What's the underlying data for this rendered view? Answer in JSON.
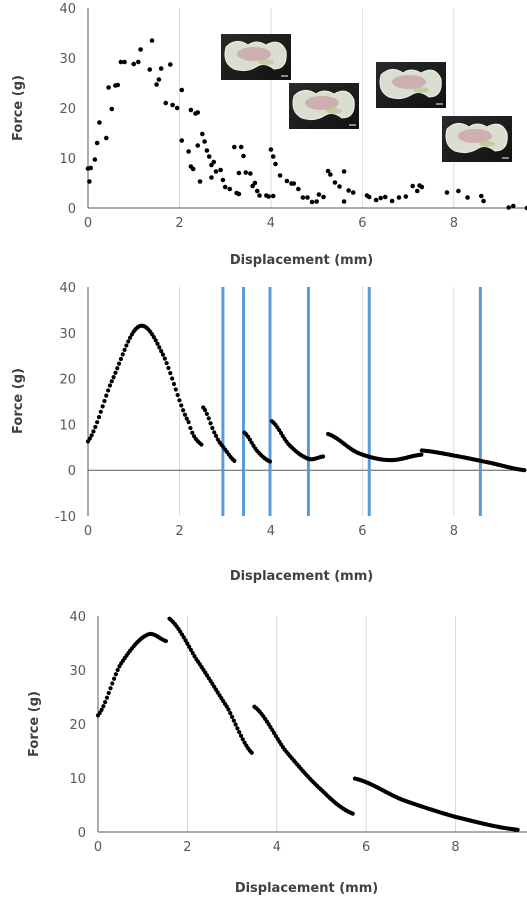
{
  "chart_data": [
    {
      "type": "scatter",
      "title": "",
      "xlabel": "Displacement (mm)",
      "ylabel": "Force (g)",
      "xlim": [
        0,
        9.6
      ],
      "ylim": [
        0,
        40
      ],
      "xticks": [
        0,
        2,
        4,
        6,
        8
      ],
      "yticks": [
        0,
        10,
        20,
        30,
        40
      ],
      "grid": "vertical",
      "marker_color": "#000000",
      "inset_photos": 4,
      "points": [
        [
          0.0,
          7.9
        ],
        [
          0.03,
          5.3
        ],
        [
          0.06,
          8.0
        ],
        [
          0.15,
          9.7
        ],
        [
          0.2,
          13.0
        ],
        [
          0.25,
          17.1
        ],
        [
          0.4,
          14.0
        ],
        [
          0.45,
          24.1
        ],
        [
          0.52,
          19.8
        ],
        [
          0.6,
          24.5
        ],
        [
          0.65,
          24.6
        ],
        [
          0.72,
          29.2
        ],
        [
          0.8,
          29.2
        ],
        [
          1.0,
          28.8
        ],
        [
          1.1,
          29.2
        ],
        [
          1.15,
          31.7
        ],
        [
          1.35,
          27.7
        ],
        [
          1.4,
          33.5
        ],
        [
          1.5,
          24.7
        ],
        [
          1.55,
          25.7
        ],
        [
          1.6,
          27.9
        ],
        [
          1.7,
          21.0
        ],
        [
          1.8,
          28.7
        ],
        [
          1.85,
          20.6
        ],
        [
          1.95,
          20.0
        ],
        [
          2.05,
          23.6
        ],
        [
          2.05,
          13.5
        ],
        [
          2.2,
          11.3
        ],
        [
          2.25,
          19.6
        ],
        [
          2.25,
          8.3
        ],
        [
          2.3,
          7.8
        ],
        [
          2.35,
          18.9
        ],
        [
          2.4,
          19.1
        ],
        [
          2.4,
          12.5
        ],
        [
          2.45,
          5.3
        ],
        [
          2.5,
          14.8
        ],
        [
          2.55,
          13.3
        ],
        [
          2.6,
          11.5
        ],
        [
          2.65,
          10.3
        ],
        [
          2.7,
          8.6
        ],
        [
          2.7,
          6.1
        ],
        [
          2.75,
          9.2
        ],
        [
          2.8,
          7.3
        ],
        [
          2.9,
          7.6
        ],
        [
          2.95,
          5.6
        ],
        [
          3.0,
          4.2
        ],
        [
          3.1,
          3.8
        ],
        [
          3.2,
          12.2
        ],
        [
          3.25,
          3.0
        ],
        [
          3.3,
          7.0
        ],
        [
          3.3,
          2.8
        ],
        [
          3.35,
          12.2
        ],
        [
          3.4,
          10.4
        ],
        [
          3.45,
          7.1
        ],
        [
          3.55,
          6.9
        ],
        [
          3.6,
          4.4
        ],
        [
          3.65,
          5.0
        ],
        [
          3.7,
          3.4
        ],
        [
          3.75,
          2.5
        ],
        [
          3.9,
          2.5
        ],
        [
          3.95,
          2.3
        ],
        [
          4.0,
          11.7
        ],
        [
          4.05,
          10.3
        ],
        [
          4.05,
          2.4
        ],
        [
          4.1,
          8.8
        ],
        [
          4.2,
          6.5
        ],
        [
          4.35,
          5.4
        ],
        [
          4.45,
          4.9
        ],
        [
          4.5,
          4.9
        ],
        [
          4.6,
          3.8
        ],
        [
          4.7,
          2.1
        ],
        [
          4.8,
          2.1
        ],
        [
          4.9,
          1.2
        ],
        [
          5.0,
          1.3
        ],
        [
          5.05,
          2.7
        ],
        [
          5.15,
          2.2
        ],
        [
          5.25,
          7.4
        ],
        [
          5.3,
          6.7
        ],
        [
          5.4,
          5.1
        ],
        [
          5.5,
          4.3
        ],
        [
          5.6,
          7.3
        ],
        [
          5.6,
          1.3
        ],
        [
          5.7,
          3.5
        ],
        [
          5.8,
          3.1
        ],
        [
          6.1,
          2.5
        ],
        [
          6.15,
          2.2
        ],
        [
          6.3,
          1.6
        ],
        [
          6.4,
          2.0
        ],
        [
          6.5,
          2.2
        ],
        [
          6.65,
          1.4
        ],
        [
          6.8,
          2.1
        ],
        [
          6.95,
          2.3
        ],
        [
          7.1,
          4.4
        ],
        [
          7.2,
          3.4
        ],
        [
          7.25,
          4.5
        ],
        [
          7.3,
          4.2
        ],
        [
          7.85,
          3.1
        ],
        [
          8.1,
          3.4
        ],
        [
          8.3,
          2.1
        ],
        [
          8.6,
          2.4
        ],
        [
          8.65,
          1.4
        ],
        [
          9.2,
          0.1
        ],
        [
          9.3,
          0.4
        ],
        [
          9.6,
          0.0
        ]
      ]
    },
    {
      "type": "line",
      "title": "",
      "xlabel": "Displacement (mm)",
      "ylabel": "Force (g)",
      "xlim": [
        0,
        9.6
      ],
      "ylim": [
        -10,
        40
      ],
      "xticks": [
        0,
        2,
        4,
        6,
        8
      ],
      "yticks": [
        -10,
        0,
        10,
        20,
        30,
        40
      ],
      "grid": "vertical",
      "marker_color": "#000000",
      "vertical_lines": {
        "color": "#5b9bd5",
        "x": [
          2.95,
          3.4,
          3.98,
          4.82,
          6.15,
          8.58
        ]
      },
      "segments": [
        {
          "x_start": 0.0,
          "x_end": 2.48,
          "points": [
            [
              0.0,
              6.3
            ],
            [
              0.5,
              19.0
            ],
            [
              1.1,
              31.3
            ],
            [
              1.6,
              26.0
            ],
            [
              2.2,
              10.5
            ],
            [
              2.48,
              5.6
            ]
          ]
        },
        {
          "x_start": 2.52,
          "x_end": 3.22,
          "points": [
            [
              2.52,
              13.7
            ],
            [
              2.8,
              7.5
            ],
            [
              3.0,
              4.5
            ],
            [
              3.22,
              1.9
            ]
          ]
        },
        {
          "x_start": 3.42,
          "x_end": 3.98,
          "points": [
            [
              3.42,
              8.2
            ],
            [
              3.7,
              4.2
            ],
            [
              3.98,
              1.9
            ]
          ]
        },
        {
          "x_start": 4.02,
          "x_end": 5.15,
          "points": [
            [
              4.02,
              10.7
            ],
            [
              4.4,
              5.5
            ],
            [
              4.82,
              2.5
            ],
            [
              5.15,
              3.0
            ]
          ]
        },
        {
          "x_start": 5.25,
          "x_end": 7.3,
          "points": [
            [
              5.25,
              7.9
            ],
            [
              5.9,
              3.8
            ],
            [
              6.6,
              2.2
            ],
            [
              7.3,
              3.4
            ]
          ]
        },
        {
          "x_start": 7.3,
          "x_end": 9.55,
          "points": [
            [
              7.3,
              4.3
            ],
            [
              8.0,
              3.2
            ],
            [
              8.8,
              1.6
            ],
            [
              9.55,
              0.0
            ]
          ]
        }
      ]
    },
    {
      "type": "line",
      "title": "",
      "xlabel": "Displacement (mm)",
      "ylabel": "Force (g)",
      "xlim": [
        0,
        9.6
      ],
      "ylim": [
        0,
        40
      ],
      "xticks": [
        0,
        2,
        4,
        6,
        8
      ],
      "yticks": [
        0,
        10,
        20,
        30,
        40
      ],
      "grid": "vertical",
      "marker_color": "#000000",
      "segments": [
        {
          "x_start": 0.0,
          "x_end": 1.55,
          "points": [
            [
              0.0,
              21.6
            ],
            [
              0.5,
              31.0
            ],
            [
              1.1,
              36.5
            ],
            [
              1.55,
              35.3
            ]
          ]
        },
        {
          "x_start": 1.6,
          "x_end": 3.45,
          "points": [
            [
              1.6,
              39.5
            ],
            [
              2.2,
              32.0
            ],
            [
              2.9,
              23.0
            ],
            [
              3.45,
              14.6
            ]
          ]
        },
        {
          "x_start": 3.5,
          "x_end": 5.7,
          "points": [
            [
              3.5,
              23.2
            ],
            [
              4.2,
              15.0
            ],
            [
              5.0,
              7.8
            ],
            [
              5.7,
              3.4
            ]
          ]
        },
        {
          "x_start": 5.75,
          "x_end": 9.4,
          "points": [
            [
              5.75,
              9.9
            ],
            [
              6.8,
              6.0
            ],
            [
              8.0,
              2.8
            ],
            [
              9.4,
              0.4
            ]
          ]
        }
      ]
    }
  ]
}
